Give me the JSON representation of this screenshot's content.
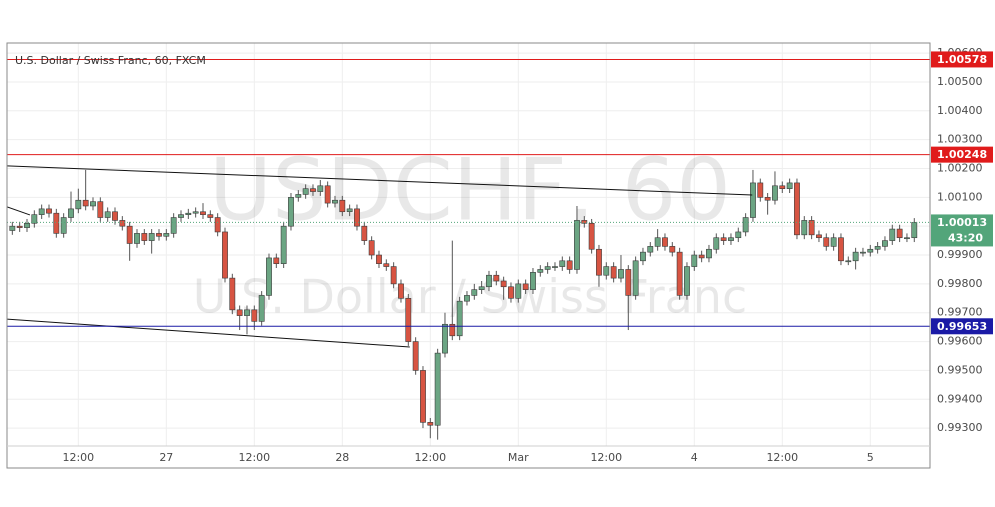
{
  "chart_data": {
    "type": "candlestick",
    "title": "U.S. Dollar / Swiss Franc, 60, FXCM",
    "watermark": "USDCHF, 60",
    "watermark_subtitle": "U.S. Dollar / Swiss Franc",
    "countdown": "43:20",
    "up_color": "#6ba583",
    "down_color": "#d75442",
    "grid": true,
    "ylim": [
      0.99238,
      1.00635
    ],
    "yticks": [
      {
        "value": 0.993,
        "label": "0.99300"
      },
      {
        "value": 0.994,
        "label": "0.99400"
      },
      {
        "value": 0.995,
        "label": "0.99500"
      },
      {
        "value": 0.996,
        "label": "0.99600"
      },
      {
        "value": 0.997,
        "label": "0.99700"
      },
      {
        "value": 0.998,
        "label": "0.99800"
      },
      {
        "value": 0.999,
        "label": "0.99900"
      },
      {
        "value": 1.0,
        "label": "1.00000"
      },
      {
        "value": 1.001,
        "label": "1.00100"
      },
      {
        "value": 1.002,
        "label": "1.00200"
      },
      {
        "value": 1.003,
        "label": "1.00300"
      },
      {
        "value": 1.004,
        "label": "1.00400"
      },
      {
        "value": 1.005,
        "label": "1.00500"
      },
      {
        "value": 1.006,
        "label": "1.00600"
      }
    ],
    "categories": [
      null,
      null,
      null,
      null,
      null,
      null,
      null,
      null,
      null,
      "12:00",
      null,
      null,
      null,
      null,
      null,
      null,
      null,
      null,
      null,
      null,
      null,
      "27",
      null,
      null,
      null,
      null,
      null,
      null,
      null,
      null,
      null,
      null,
      null,
      "12:00",
      null,
      null,
      null,
      null,
      null,
      null,
      null,
      null,
      null,
      null,
      null,
      "28",
      null,
      null,
      null,
      null,
      null,
      null,
      null,
      null,
      null,
      null,
      null,
      "12:00",
      null,
      null,
      null,
      null,
      null,
      null,
      null,
      null,
      null,
      null,
      null,
      "Mar",
      null,
      null,
      null,
      null,
      null,
      null,
      null,
      null,
      null,
      null,
      null,
      "12:00",
      null,
      null,
      null,
      null,
      null,
      null,
      null,
      null,
      null,
      null,
      null,
      "4",
      null,
      null,
      null,
      null,
      null,
      null,
      null,
      null,
      null,
      null,
      null,
      "12:00",
      null,
      null,
      null,
      null,
      null,
      null,
      null,
      null,
      null,
      null,
      null,
      "5",
      null,
      null,
      null,
      null,
      null,
      null
    ],
    "open": [
      0.99985,
      1.0,
      0.99995,
      1.0001,
      1.0004,
      1.0006,
      1.00045,
      0.99975,
      1.0003,
      1.0006,
      1.0009,
      1.0007,
      1.00085,
      1.0003,
      1.0005,
      1.0002,
      1.0,
      0.9994,
      0.99975,
      0.9995,
      0.99975,
      0.99965,
      0.99975,
      1.0003,
      1.0004,
      1.00045,
      1.0005,
      1.0004,
      1.0003,
      0.9998,
      0.9982,
      0.9971,
      0.9969,
      0.9971,
      0.9967,
      0.9976,
      0.9989,
      0.9987,
      1.0,
      1.001,
      1.0011,
      1.0013,
      1.0012,
      1.0014,
      1.0008,
      1.0009,
      1.0005,
      1.0006,
      1.0,
      0.9995,
      0.999,
      0.9987,
      0.9986,
      0.998,
      0.9975,
      0.996,
      0.995,
      0.9932,
      0.9931,
      0.9956,
      0.9966,
      0.9962,
      0.9974,
      0.9976,
      0.9978,
      0.9979,
      0.9983,
      0.9981,
      0.9979,
      0.9975,
      0.998,
      0.9978,
      0.9984,
      0.9985,
      0.9986,
      0.9986,
      0.9988,
      0.9985,
      1.0002,
      1.0001,
      0.9992,
      0.9983,
      0.9986,
      0.9982,
      0.9985,
      0.9976,
      0.9988,
      0.9991,
      0.9993,
      0.9996,
      0.9993,
      0.9991,
      0.9976,
      0.9986,
      0.999,
      0.9989,
      0.9992,
      0.9996,
      0.9995,
      0.9996,
      0.9998,
      1.0003,
      1.0015,
      1.001,
      1.0009,
      1.0014,
      1.0013,
      1.0015,
      0.9997,
      1.0002,
      0.9997,
      0.9996,
      0.9993,
      0.9996,
      0.9988,
      0.9988,
      0.9991,
      0.9991,
      0.9992,
      0.9993,
      0.9995,
      0.9999,
      0.9996,
      0.9996
    ],
    "high": [
      1.00015,
      1.00015,
      1.00025,
      1.00055,
      1.00075,
      1.00075,
      1.0006,
      1.00045,
      1.0012,
      1.0013,
      1.00195,
      1.001,
      1.001,
      1.00065,
      1.00065,
      1.00035,
      1.00015,
      0.9999,
      0.9999,
      0.9999,
      0.9999,
      0.9999,
      1.00045,
      1.00055,
      1.0006,
      1.00065,
      1.0008,
      1.00055,
      1.00045,
      0.99995,
      0.99835,
      0.99725,
      0.99725,
      0.99725,
      0.99775,
      0.99905,
      0.99905,
      1.00015,
      1.00115,
      1.00125,
      1.00145,
      1.00145,
      1.0016,
      1.00155,
      1.00105,
      1.00105,
      1.00075,
      1.00075,
      1.00015,
      0.99965,
      0.99915,
      0.99885,
      0.99875,
      0.99815,
      0.99765,
      0.99615,
      0.99515,
      0.99335,
      0.99575,
      0.997,
      0.9995,
      0.99755,
      0.99775,
      0.998,
      0.9981,
      0.99845,
      0.99845,
      0.99825,
      0.99805,
      0.99815,
      0.99815,
      0.99855,
      0.99865,
      0.99875,
      0.99875,
      0.99895,
      0.99895,
      1.0007,
      1.00035,
      1.00025,
      0.99935,
      0.99875,
      0.99875,
      0.999,
      0.99865,
      0.99895,
      0.99925,
      0.99945,
      0.9999,
      0.99975,
      0.99945,
      0.99925,
      0.99875,
      0.99915,
      0.99915,
      0.99935,
      0.99975,
      0.99975,
      0.99975,
      0.99995,
      1.00045,
      1.00195,
      1.00165,
      1.00115,
      1.0019,
      1.00155,
      1.00165,
      1.00165,
      1.00035,
      1.00035,
      0.99985,
      0.99975,
      0.99975,
      0.99975,
      0.99895,
      0.99925,
      0.99925,
      0.99935,
      0.99945,
      0.99965,
      1.00005,
      1.00005,
      0.99975,
      1.00028
    ],
    "low": [
      0.9997,
      0.9998,
      0.9998,
      0.99995,
      1.00025,
      1.0003,
      0.9996,
      0.9996,
      1.00015,
      1.00045,
      1.00055,
      1.00055,
      1.00015,
      1.00015,
      1.00005,
      0.99985,
      0.9988,
      0.99925,
      0.99935,
      0.99905,
      0.9995,
      0.9995,
      0.9996,
      1.00015,
      1.00025,
      1.0003,
      1.00025,
      1.00015,
      0.99965,
      0.99805,
      0.99695,
      0.9964,
      0.99625,
      0.9964,
      0.99655,
      0.99745,
      0.99855,
      0.99855,
      0.99985,
      1.00085,
      1.00095,
      1.00105,
      1.00105,
      1.00065,
      1.00065,
      1.00035,
      1.00035,
      0.99985,
      0.99935,
      0.99885,
      0.99855,
      0.99845,
      0.99785,
      0.99735,
      0.99585,
      0.99485,
      0.993,
      0.99265,
      0.9926,
      0.99545,
      0.99605,
      0.99605,
      0.99725,
      0.99745,
      0.99765,
      0.99775,
      0.99795,
      0.99745,
      0.99735,
      0.99735,
      0.99765,
      0.99765,
      0.99825,
      0.99835,
      0.99845,
      0.99845,
      0.99835,
      0.99835,
      0.99995,
      0.99905,
      0.9979,
      0.99815,
      0.99805,
      0.99805,
      0.9964,
      0.99745,
      0.99865,
      0.99895,
      0.99915,
      0.99915,
      0.99895,
      0.99745,
      0.99745,
      0.99845,
      0.99875,
      0.99875,
      0.99905,
      0.99935,
      0.99935,
      0.99945,
      0.99965,
      1.00015,
      1.00085,
      1.0004,
      1.00075,
      1.00115,
      1.00115,
      0.99955,
      0.99955,
      0.99955,
      0.99945,
      0.99915,
      0.99915,
      0.99865,
      0.99865,
      0.9985,
      0.99895,
      0.99895,
      0.99905,
      0.99915,
      0.99935,
      0.99945,
      0.99945,
      0.99945
    ],
    "close": [
      1.0,
      0.99995,
      1.0001,
      1.0004,
      1.0006,
      1.00045,
      0.99975,
      1.0003,
      1.0006,
      1.0009,
      1.0007,
      1.00085,
      1.0003,
      1.0005,
      1.0002,
      1.0,
      0.9994,
      0.99975,
      0.9995,
      0.99975,
      0.99965,
      0.99975,
      1.0003,
      1.0004,
      1.00045,
      1.0005,
      1.0004,
      1.0003,
      0.9998,
      0.9982,
      0.9971,
      0.9969,
      0.9971,
      0.9967,
      0.9976,
      0.9989,
      0.9987,
      1.0,
      1.001,
      1.0011,
      1.0013,
      1.0012,
      1.0014,
      1.0008,
      1.0009,
      1.0005,
      1.0006,
      1.0,
      0.9995,
      0.999,
      0.9987,
      0.9986,
      0.998,
      0.9975,
      0.996,
      0.995,
      0.9932,
      0.9931,
      0.9956,
      0.9966,
      0.9962,
      0.9974,
      0.9976,
      0.9978,
      0.9979,
      0.9983,
      0.9981,
      0.9979,
      0.9975,
      0.998,
      0.9978,
      0.9984,
      0.9985,
      0.9986,
      0.9986,
      0.9988,
      0.9985,
      1.0002,
      1.0001,
      0.9992,
      0.9983,
      0.9986,
      0.9982,
      0.9985,
      0.9976,
      0.9988,
      0.9991,
      0.9993,
      0.9996,
      0.9993,
      0.9991,
      0.9976,
      0.9986,
      0.999,
      0.9989,
      0.9992,
      0.9996,
      0.9995,
      0.9996,
      0.9998,
      1.0003,
      1.0015,
      1.001,
      1.0009,
      1.0014,
      1.0013,
      1.0015,
      0.9997,
      1.0002,
      0.9997,
      0.9996,
      0.9993,
      0.9996,
      0.9988,
      0.9988,
      0.9991,
      0.9991,
      0.9992,
      0.9993,
      0.9995,
      0.9999,
      0.9996,
      0.9996,
      1.00013
    ],
    "levels": [
      {
        "value": 1.00578,
        "color": "#e01b1b"
      },
      {
        "value": 1.00248,
        "color": "#e01b1b"
      },
      {
        "value": 0.99653,
        "color": "#1a1aa6"
      }
    ],
    "last_price_color": "#53a57a",
    "trend_lines": [
      {
        "x": [
          -0.73,
          100.9
        ],
        "y": [
          1.00209,
          1.00108
        ]
      },
      {
        "x": [
          -0.73,
          54.2
        ],
        "y": [
          0.99678,
          0.99581
        ]
      },
      {
        "x": [
          -0.73,
          2.4
        ],
        "y": [
          1.00067,
          1.00039
        ]
      }
    ]
  }
}
